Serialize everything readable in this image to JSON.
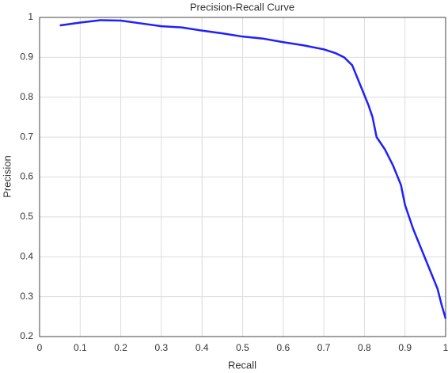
{
  "chart_data": {
    "type": "line",
    "title": "Precision-Recall Curve",
    "x_label": "Recall",
    "y_label": "Precision",
    "x": [
      0.05,
      0.1,
      0.15,
      0.2,
      0.25,
      0.3,
      0.35,
      0.4,
      0.45,
      0.5,
      0.55,
      0.6,
      0.65,
      0.7,
      0.73,
      0.75,
      0.77,
      0.79,
      0.81,
      0.82,
      0.83,
      0.85,
      0.87,
      0.89,
      0.9,
      0.92,
      0.94,
      0.96,
      0.98,
      0.99,
      1.0
    ],
    "values": [
      0.98,
      0.987,
      0.993,
      0.992,
      0.985,
      0.978,
      0.975,
      0.967,
      0.96,
      0.952,
      0.947,
      0.938,
      0.93,
      0.92,
      0.91,
      0.9,
      0.88,
      0.83,
      0.78,
      0.75,
      0.7,
      0.67,
      0.63,
      0.58,
      0.53,
      0.47,
      0.42,
      0.37,
      0.32,
      0.28,
      0.245
    ],
    "color": "#1f1fff",
    "xlim": [
      0,
      1
    ],
    "xticks": [
      0,
      0.1,
      0.2,
      0.3,
      0.4,
      0.5,
      0.6,
      0.7,
      0.8,
      0.9,
      1
    ],
    "ylim": [
      0.2,
      1
    ],
    "yticks": [
      0.2,
      0.3,
      0.4,
      0.5,
      0.6,
      0.7,
      0.8,
      0.9,
      1
    ],
    "grid": true
  }
}
